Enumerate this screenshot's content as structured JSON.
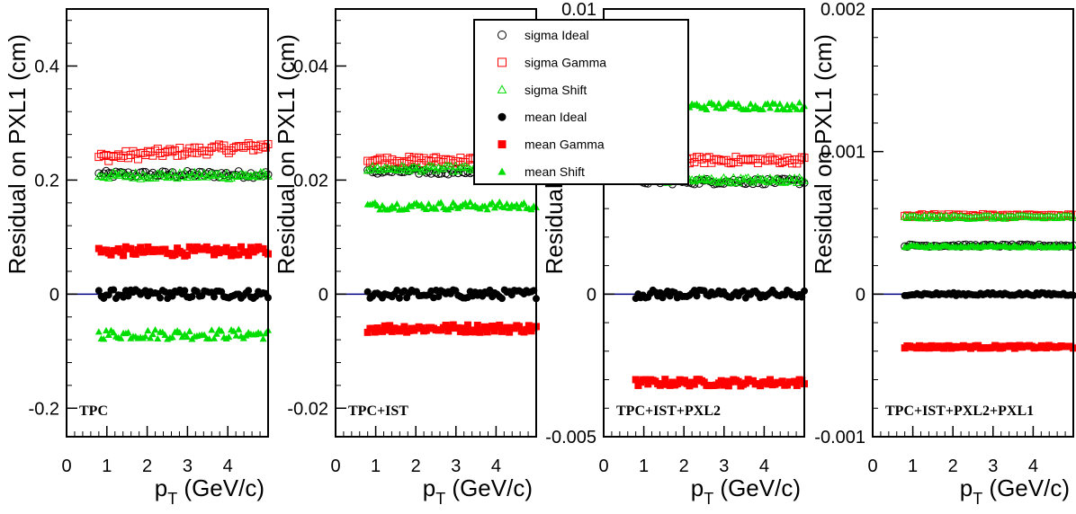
{
  "chart_data": [
    {
      "type": "scatter",
      "label": "TPC",
      "ylabel": "Residual on PXL1 (cm)",
      "xlabel": "p",
      "xlabel_sub": "T",
      "xlabel_unit": "(GeV/c)",
      "xlim": [
        0,
        5
      ],
      "ylim": [
        -0.25,
        0.5
      ],
      "xticks": [
        "0",
        "1",
        "2",
        "3",
        "4"
      ],
      "ytick_values": [
        -0.2,
        0,
        0.2,
        0.4
      ],
      "yticks": [
        "-0.2",
        "0",
        "0.2",
        "0.4"
      ],
      "x_start": 0.8,
      "x_end": 5.0,
      "series": [
        {
          "name": "sigma Ideal",
          "y": 0.21,
          "spread": 0.006
        },
        {
          "name": "sigma Gamma",
          "y": 0.24,
          "trend": 0.02,
          "spread": 0.008
        },
        {
          "name": "sigma Shift",
          "y": 0.208,
          "spread": 0.006
        },
        {
          "name": "mean Ideal",
          "y": 0.0,
          "spread": 0.008
        },
        {
          "name": "mean Gamma",
          "y": 0.075,
          "spread": 0.008
        },
        {
          "name": "mean Shift",
          "y": -0.07,
          "spread": 0.009
        }
      ]
    },
    {
      "type": "scatter",
      "label": "TPC+IST",
      "ylabel": "Residual on PXL1 (cm)",
      "xlabel": "p",
      "xlabel_sub": "T",
      "xlabel_unit": "(GeV/c)",
      "xlim": [
        0,
        5
      ],
      "ylim": [
        -0.025,
        0.05
      ],
      "xticks": [
        "0",
        "1",
        "2",
        "3",
        "4"
      ],
      "ytick_values": [
        -0.02,
        0,
        0.02,
        0.04
      ],
      "yticks": [
        "-0.02",
        "0",
        "0.02",
        "0.04"
      ],
      "x_start": 0.8,
      "x_end": 5.0,
      "series": [
        {
          "name": "sigma Ideal",
          "y": 0.0215,
          "spread": 0.0005
        },
        {
          "name": "sigma Gamma",
          "y": 0.0235,
          "spread": 0.0006
        },
        {
          "name": "sigma Shift",
          "y": 0.022,
          "spread": 0.0005
        },
        {
          "name": "mean Ideal",
          "y": 0.0,
          "spread": 0.0008
        },
        {
          "name": "mean Gamma",
          "y": -0.006,
          "spread": 0.0007
        },
        {
          "name": "mean Shift",
          "y": 0.0155,
          "spread": 0.0007
        }
      ]
    },
    {
      "type": "scatter",
      "label": "TPC+IST+PXL2",
      "ylabel": "Residual on PXL1 (cm)",
      "xlabel": "p",
      "xlabel_sub": "T",
      "xlabel_unit": "(GeV/c)",
      "xlim": [
        0,
        5
      ],
      "ylim": [
        -0.005,
        0.01
      ],
      "xticks": [
        "0",
        "1",
        "2",
        "3",
        "4"
      ],
      "ytick_values": [
        -0.005,
        0,
        0.01
      ],
      "yticks": [
        "-0.005",
        "0",
        "0.01"
      ],
      "x_start": 0.8,
      "x_end": 5.0,
      "series": [
        {
          "name": "sigma Ideal",
          "y": 0.00395,
          "spread": 0.0001
        },
        {
          "name": "sigma Gamma",
          "y": 0.0047,
          "spread": 0.00012
        },
        {
          "name": "sigma Shift",
          "y": 0.004,
          "spread": 0.0001
        },
        {
          "name": "mean Ideal",
          "y": 0.0,
          "spread": 0.00015
        },
        {
          "name": "mean Gamma",
          "y": -0.0031,
          "spread": 0.00012
        },
        {
          "name": "mean Shift",
          "y": 0.0066,
          "spread": 0.00013
        }
      ]
    },
    {
      "type": "scatter",
      "label": "TPC+IST+PXL2+PXL1",
      "ylabel": "Residual on PXL1 (cm)",
      "xlabel": "p",
      "xlabel_sub": "T",
      "xlabel_unit": "(GeV/c)",
      "xlim": [
        0,
        5
      ],
      "ylim": [
        -0.001,
        0.002
      ],
      "xticks": [
        "0",
        "1",
        "2",
        "3",
        "4"
      ],
      "ytick_values": [
        -0.001,
        0,
        0.001,
        0.002
      ],
      "yticks": [
        "-0.001",
        "0",
        "0.001",
        "0.002"
      ],
      "x_start": 0.8,
      "x_end": 5.0,
      "series": [
        {
          "name": "sigma Ideal",
          "y": 0.00034,
          "spread": 8e-06
        },
        {
          "name": "sigma Gamma",
          "y": 0.00055,
          "spread": 1e-05
        },
        {
          "name": "sigma Shift",
          "y": 0.00054,
          "spread": 1e-05
        },
        {
          "name": "mean Ideal",
          "y": 0.0,
          "spread": 1e-05
        },
        {
          "name": "mean Gamma",
          "y": -0.00037,
          "spread": 1e-05
        },
        {
          "name": "mean Shift",
          "y": 0.000335,
          "spread": 8e-06
        }
      ]
    }
  ],
  "legend": [
    {
      "label": "sigma Ideal",
      "marker": "circle-open",
      "color": "#000000"
    },
    {
      "label": "sigma Gamma",
      "marker": "square-open",
      "color": "#ff0000"
    },
    {
      "label": "sigma Shift",
      "marker": "triangle-open",
      "color": "#00dd00"
    },
    {
      "label": "mean Ideal",
      "marker": "circle-filled",
      "color": "#000000"
    },
    {
      "label": "mean Gamma",
      "marker": "square-filled",
      "color": "#ff0000"
    },
    {
      "label": "mean Shift",
      "marker": "triangle-filled",
      "color": "#00dd00"
    }
  ],
  "colors": {
    "zero_line": "#000080",
    "black": "#000000",
    "red": "#ff0000",
    "green": "#00dd00"
  }
}
